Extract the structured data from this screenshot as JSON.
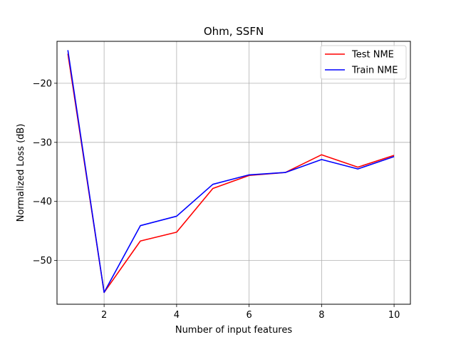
{
  "chart_data": {
    "type": "line",
    "title": "Ohm, SSFN",
    "xlabel": "Number of input features",
    "ylabel": "Normalized Loss (dB)",
    "xlim": [
      0.7,
      10.45
    ],
    "ylim": [
      -57.4,
      -12.9
    ],
    "xticks": [
      2,
      4,
      6,
      8,
      10
    ],
    "yticks": [
      -50,
      -40,
      -30,
      -20
    ],
    "grid": true,
    "legend_position": "top-right",
    "x": [
      1,
      2,
      3,
      4,
      5,
      6,
      7,
      8,
      9,
      10
    ],
    "series": [
      {
        "name": "Test NME",
        "color": "#ff0000",
        "values": [
          -15.0,
          -55.4,
          -46.7,
          -45.2,
          -37.8,
          -35.6,
          -35.1,
          -32.1,
          -34.2,
          -32.2
        ]
      },
      {
        "name": "Train NME",
        "color": "#0000ff",
        "values": [
          -14.4,
          -55.4,
          -44.1,
          -42.5,
          -37.1,
          -35.5,
          -35.1,
          -32.9,
          -34.5,
          -32.4
        ]
      }
    ]
  }
}
